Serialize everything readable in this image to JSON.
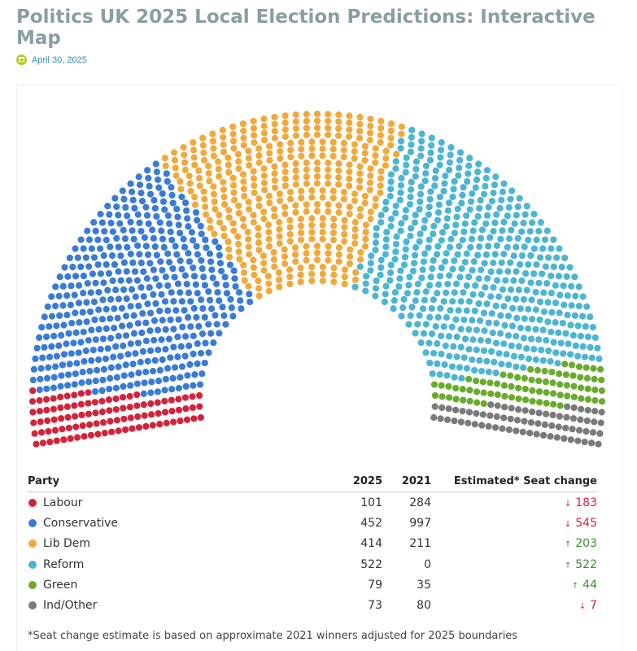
{
  "page": {
    "title": "Politics UK 2025 Local Election Predictions: Interactive Map",
    "date": "April 30, 2025",
    "date_icon": "calendar-icon"
  },
  "chart_data": {
    "type": "parliament",
    "total_seats": 1641,
    "series": [
      {
        "name": "Labour",
        "color": "#d1243b",
        "seats_2025": 101,
        "seats_2021": 284,
        "change": "183",
        "direction": "down"
      },
      {
        "name": "Conservative",
        "color": "#3a7bd5",
        "seats_2025": 452,
        "seats_2021": 997,
        "change": "545",
        "direction": "down"
      },
      {
        "name": "Lib Dem",
        "color": "#f0a93b",
        "seats_2025": 414,
        "seats_2021": 211,
        "change": "203",
        "direction": "up"
      },
      {
        "name": "Reform",
        "color": "#4cb5d2",
        "seats_2025": 522,
        "seats_2021": 0,
        "change": "522",
        "direction": "up"
      },
      {
        "name": "Green",
        "color": "#6aab2e",
        "seats_2025": 79,
        "seats_2021": 35,
        "change": "44",
        "direction": "up"
      },
      {
        "name": "Ind/Other",
        "color": "#7a7a7a",
        "seats_2025": 73,
        "seats_2021": 80,
        "change": "7",
        "direction": "down"
      }
    ]
  },
  "table": {
    "headers": {
      "party": "Party",
      "y2025": "2025",
      "y2021": "2021",
      "change": "Estimated* Seat change"
    },
    "up_color": "#3e8e32",
    "down_color": "#d1243b"
  },
  "footnote": "*Seat change estimate is based on approximate 2021 winners adjusted for 2025 boundaries"
}
